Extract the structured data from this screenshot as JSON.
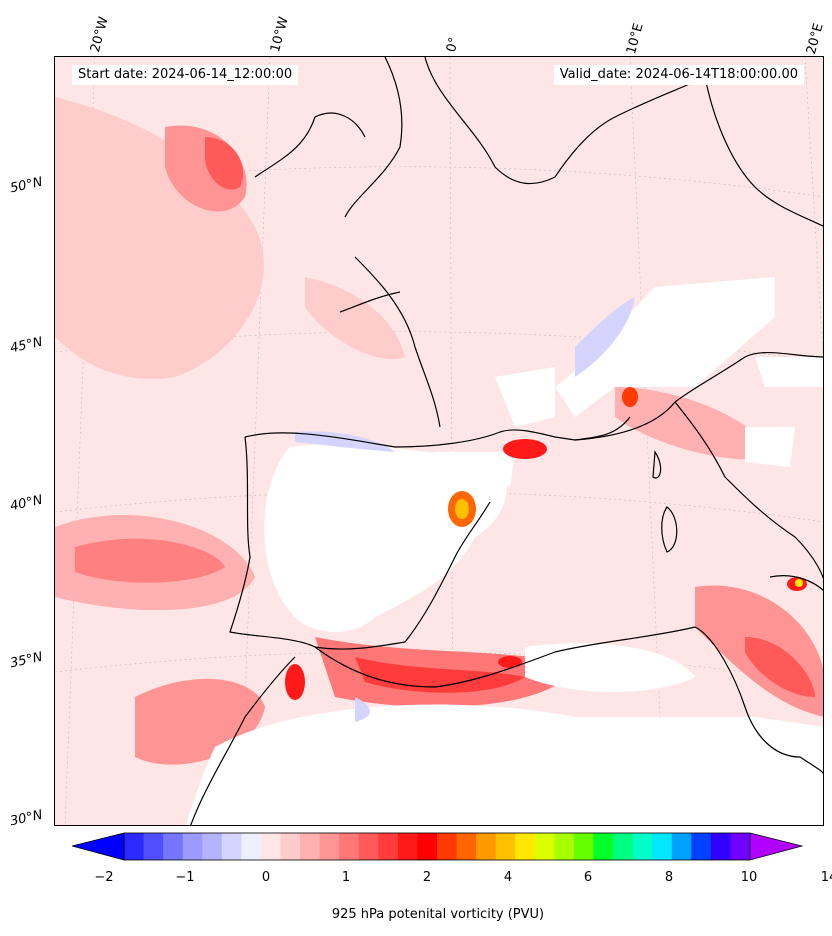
{
  "header": {
    "start_date": "Start date: 2024-06-14_12:00:00",
    "valid_date": "Valid_date: 2024-06-14T18:00:00.00"
  },
  "axes": {
    "lon_labels": [
      "20°W",
      "10°W",
      "0°",
      "10°E",
      "20°E"
    ],
    "lat_labels": [
      "50°N",
      "45°N",
      "40°N",
      "35°N",
      "30°N"
    ]
  },
  "colorbar": {
    "title": "925 hPa potenital vorticity (PVU)",
    "tick_labels": [
      "−2",
      "−1",
      "0",
      "1",
      "2",
      "4",
      "6",
      "8",
      "10",
      "14"
    ],
    "colors": [
      "#0000ff",
      "#2a2aff",
      "#4f4fff",
      "#7575ff",
      "#9b9bff",
      "#b3b3ff",
      "#d4d4ff",
      "#efefff",
      "#ffe6e6",
      "#ffcccc",
      "#ffb0b0",
      "#ff9494",
      "#ff7777",
      "#ff5a5a",
      "#ff3c3c",
      "#ff1a1a",
      "#ff0000",
      "#ff3a00",
      "#ff6600",
      "#ff9900",
      "#ffc000",
      "#ffe800",
      "#d9ff00",
      "#a8ff00",
      "#66ff00",
      "#00ff28",
      "#00ff80",
      "#00ffc8",
      "#00e8ff",
      "#00a0ff",
      "#0040ff",
      "#3000ff",
      "#7000ff",
      "#b000ff"
    ]
  },
  "map": {
    "projection": "Lambert conformal",
    "lon_range": [
      "20°W",
      "20°E"
    ],
    "lat_range": [
      "30°N",
      "53°N"
    ],
    "colors": {
      "background": "#ffe6e6",
      "coast": "#000000",
      "light_red": "#ffbcbc",
      "mid_red": "#ff8080",
      "strong_red": "#ff2a2a",
      "masked": "#ffffff",
      "negative": "#e6e6ff"
    }
  }
}
